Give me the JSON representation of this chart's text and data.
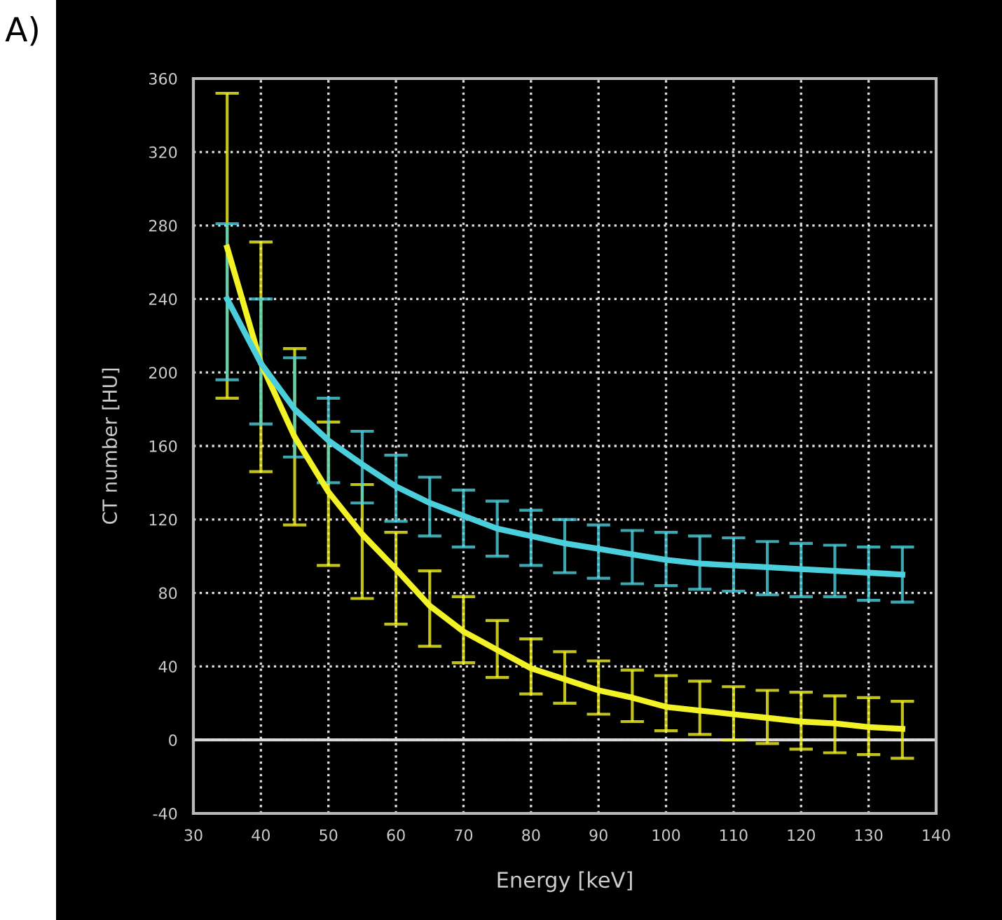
{
  "chart_data": {
    "type": "line",
    "xlabel": "Energy [keV]",
    "ylabel": "CT number [HU]",
    "annotations": [
      "A)"
    ],
    "x": [
      35,
      40,
      45,
      50,
      55,
      60,
      65,
      70,
      75,
      80,
      85,
      90,
      95,
      100,
      105,
      110,
      115,
      120,
      125,
      130,
      135
    ],
    "series": [
      {
        "color": "#f2f226",
        "values": [
          268,
          205,
          165,
          135,
          112,
          93,
          73,
          59,
          49,
          39,
          33,
          27,
          23,
          18,
          16,
          14,
          12,
          10,
          9,
          7,
          6
        ],
        "errors": [
          [
            186,
            352
          ],
          [
            146,
            271
          ],
          [
            117,
            213
          ],
          [
            95,
            173
          ],
          [
            77,
            139
          ],
          [
            63,
            113
          ],
          [
            51,
            92
          ],
          [
            42,
            78
          ],
          [
            34,
            65
          ],
          [
            25,
            55
          ],
          [
            20,
            48
          ],
          [
            14,
            43
          ],
          [
            10,
            38
          ],
          [
            5,
            35
          ],
          [
            3,
            32
          ],
          [
            0,
            29
          ],
          [
            -2,
            27
          ],
          [
            -5,
            26
          ],
          [
            -7,
            24
          ],
          [
            -8,
            23
          ],
          [
            -10,
            21
          ]
        ]
      },
      {
        "color": "#4ccfdc",
        "values": [
          240,
          205,
          180,
          163,
          150,
          138,
          129,
          122,
          115,
          111,
          107,
          104,
          101,
          98,
          96,
          95,
          94,
          93,
          92,
          91,
          90
        ],
        "errors": [
          [
            196,
            281
          ],
          [
            172,
            240
          ],
          [
            154,
            208
          ],
          [
            140,
            186
          ],
          [
            129,
            168
          ],
          [
            119,
            155
          ],
          [
            111,
            143
          ],
          [
            105,
            136
          ],
          [
            100,
            130
          ],
          [
            95,
            125
          ],
          [
            91,
            120
          ],
          [
            88,
            117
          ],
          [
            85,
            114
          ],
          [
            84,
            113
          ],
          [
            82,
            111
          ],
          [
            81,
            110
          ],
          [
            79,
            108
          ],
          [
            78,
            107
          ],
          [
            78,
            106
          ],
          [
            76,
            105
          ],
          [
            75,
            105
          ]
        ]
      }
    ],
    "xlim": [
      30,
      140
    ],
    "xticks": [
      30,
      40,
      50,
      60,
      70,
      80,
      90,
      100,
      110,
      120,
      130,
      140
    ],
    "ylim": [
      -40,
      360
    ],
    "yticks": [
      -40,
      0,
      40,
      80,
      120,
      160,
      200,
      240,
      280,
      320,
      360
    ],
    "grid": true,
    "ref_lines": [
      {
        "axis": "y",
        "value": 0,
        "color": "#d8d8d8",
        "line_style": "solid"
      }
    ],
    "marker": "none",
    "line_style": "solid"
  }
}
